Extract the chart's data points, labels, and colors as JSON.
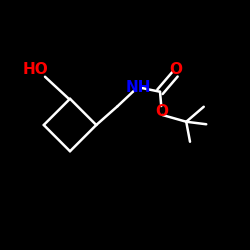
{
  "bg_color": "#000000",
  "bond_color": "#ffffff",
  "ho_color": "#ff0000",
  "nh_color": "#0000ff",
  "o_color": "#ff0000",
  "bond_width": 1.8,
  "figsize": [
    2.5,
    2.5
  ],
  "dpi": 100,
  "atoms": {
    "HO_text": "HO",
    "NH_text": "NH",
    "O_carbonyl_text": "O",
    "O_ester_text": "O"
  }
}
